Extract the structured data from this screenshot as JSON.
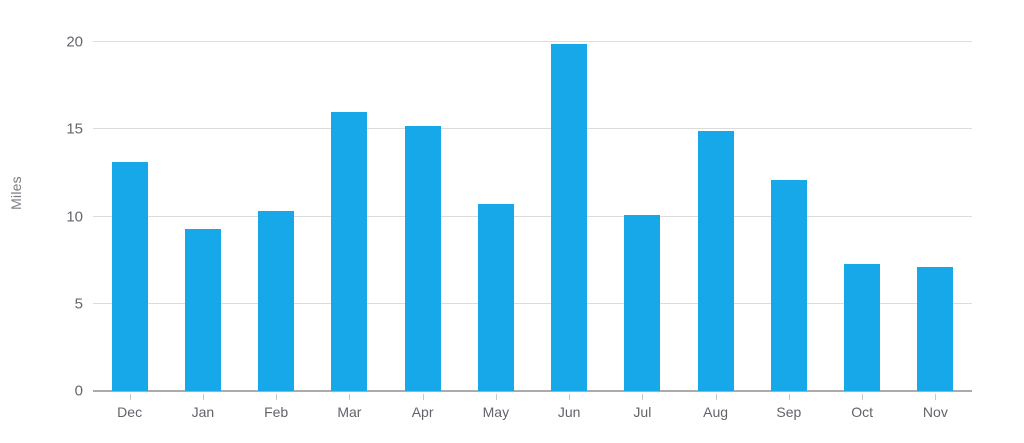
{
  "chart_data": {
    "type": "bar",
    "categories": [
      "Dec",
      "Jan",
      "Feb",
      "Mar",
      "Apr",
      "May",
      "Jun",
      "Jul",
      "Aug",
      "Sep",
      "Oct",
      "Nov"
    ],
    "values": [
      13.1,
      9.3,
      10.3,
      16.0,
      15.2,
      10.7,
      19.9,
      10.1,
      14.9,
      12.1,
      7.3,
      7.1
    ],
    "title": "",
    "xlabel": "",
    "ylabel": "Miles",
    "ylim": [
      0,
      20
    ],
    "yticks": [
      0,
      5,
      10,
      15,
      20
    ],
    "grid": true,
    "legend_position": "none",
    "bar_color": "#16a8e8",
    "grid_color": "#dcdcdc",
    "axis_color": "#ababab",
    "tick_color": "#c9c9c9"
  }
}
